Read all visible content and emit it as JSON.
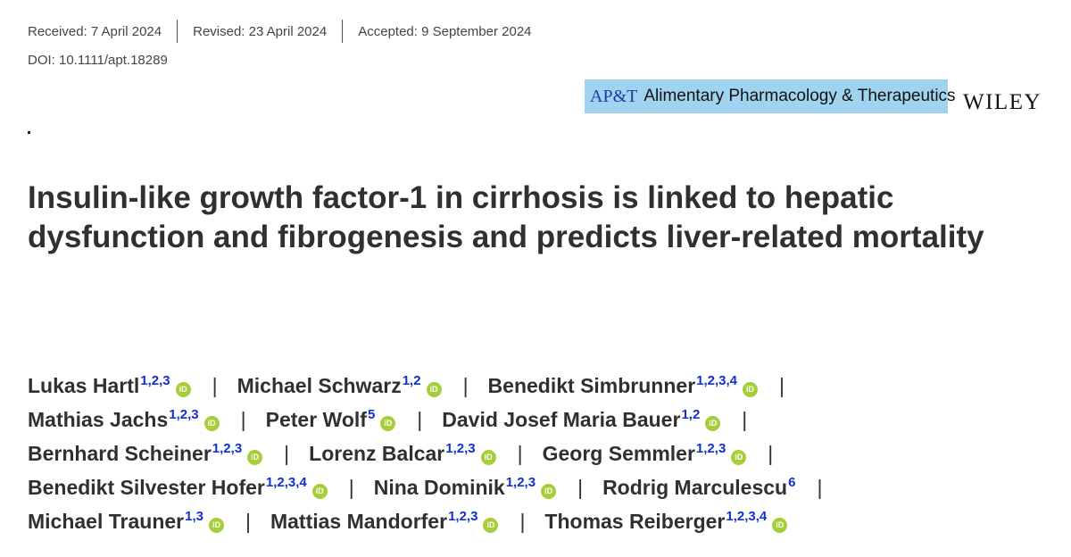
{
  "history": {
    "received": "Received: 7 April 2024",
    "revised": "Revised: 23 April 2024",
    "accepted": "Accepted: 9 September 2024"
  },
  "doi": "DOI: 10.1111/apt.18289",
  "journal": {
    "abbr": "AP&T",
    "name": "Alimentary Pharmacology & Therapeutics",
    "publisher": "WILEY",
    "badge_color": "#9fd3f0"
  },
  "title": "Insulin-like growth factor-1 in cirrhosis is linked to hepatic dysfunction and fibrogenesis and predicts liver-related mortality",
  "orcid_icon": "orcid-icon",
  "separator": "|",
  "author_lines": [
    [
      {
        "name": "Lukas Hartl",
        "aff": "1,2,3"
      },
      {
        "name": "Michael Schwarz",
        "aff": "1,2"
      },
      {
        "name": "Benedikt Simbrunner",
        "aff": "1,2,3,4"
      }
    ],
    [
      {
        "name": "Mathias Jachs",
        "aff": "1,2,3"
      },
      {
        "name": "Peter Wolf",
        "aff": "5"
      },
      {
        "name": "David Josef Maria Bauer",
        "aff": "1,2"
      }
    ],
    [
      {
        "name": "Bernhard Scheiner",
        "aff": "1,2,3"
      },
      {
        "name": "Lorenz Balcar",
        "aff": "1,2,3"
      },
      {
        "name": "Georg Semmler",
        "aff": "1,2,3"
      }
    ],
    [
      {
        "name": "Benedikt Silvester Hofer",
        "aff": "1,2,3,4"
      },
      {
        "name": "Nina Dominik",
        "aff": "1,2,3"
      },
      {
        "name": "Rodrig Marculescu",
        "aff": "6"
      }
    ],
    [
      {
        "name": "Michael Trauner",
        "aff": "1,3"
      },
      {
        "name": "Mattias Mandorfer",
        "aff": "1,2,3"
      },
      {
        "name": "Thomas Reiberger",
        "aff": "1,2,3,4"
      }
    ]
  ],
  "orcid_flags": [
    [
      true,
      true,
      true
    ],
    [
      true,
      true,
      true
    ],
    [
      true,
      true,
      true
    ],
    [
      true,
      true,
      false
    ],
    [
      true,
      true,
      true
    ]
  ],
  "trailing_separator": [
    true,
    true,
    true,
    true,
    false
  ]
}
